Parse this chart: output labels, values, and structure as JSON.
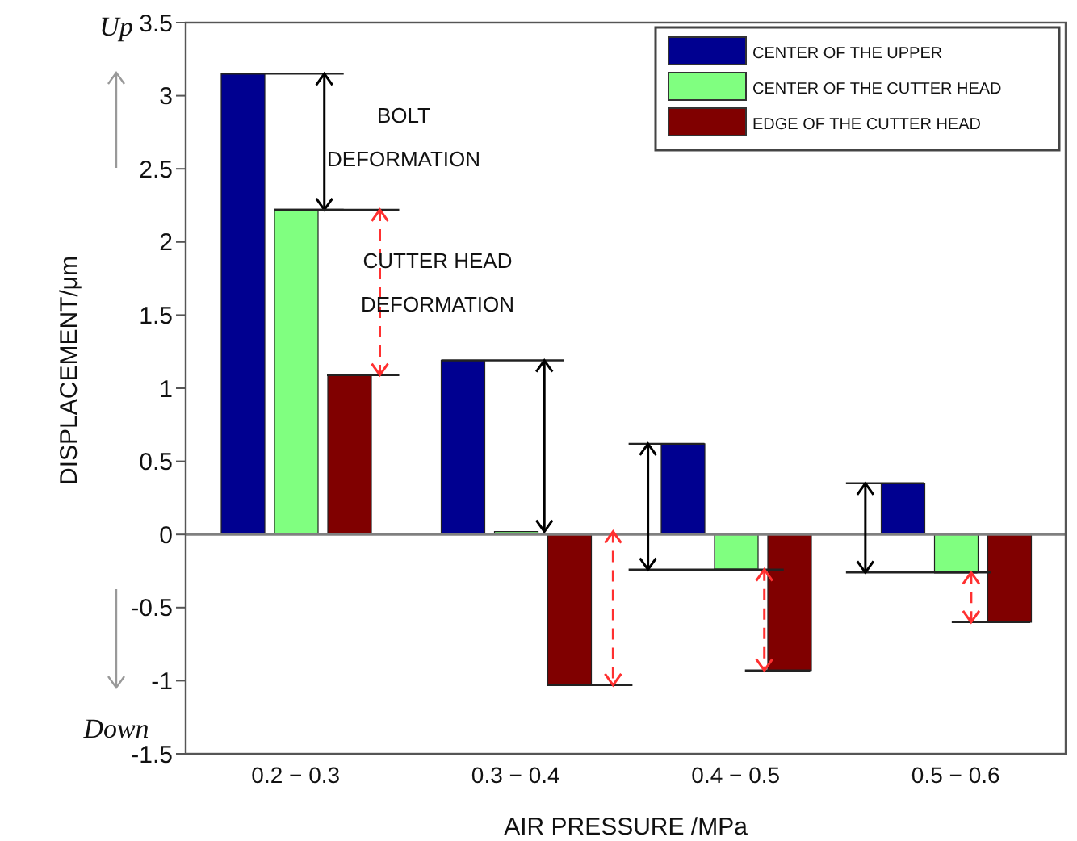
{
  "chart_data": {
    "type": "bar",
    "xlabel": "AIR PRESSURE /MPa",
    "ylabel": "DISPLACEMENT/μm",
    "categories": [
      "0.2 − 0.3",
      "0.3 − 0.4",
      "0.4 − 0.5",
      "0.5 − 0.6"
    ],
    "series": [
      {
        "name": "CENTER OF THE UPPER",
        "color": "#000090",
        "values": [
          3.15,
          1.19,
          0.62,
          0.35
        ]
      },
      {
        "name": "CENTER OF THE CUTTER HEAD",
        "color": "#80ff80",
        "values": [
          2.22,
          0.02,
          -0.24,
          -0.26
        ]
      },
      {
        "name": "EDGE OF THE CUTTER HEAD",
        "color": "#800000",
        "values": [
          1.09,
          -1.03,
          -0.93,
          -0.6
        ]
      }
    ],
    "ylim": [
      -1.5,
      3.5
    ],
    "yticks": [
      -1.5,
      -1,
      -0.5,
      0,
      0.5,
      1,
      1.5,
      2,
      2.5,
      3,
      3.5
    ],
    "ref_lines": [
      {
        "axis": "y",
        "value": 0,
        "color": "#808080"
      }
    ],
    "annotations": [
      "Up",
      "Down",
      "BOLT DEFORMATION",
      "CUTTER HEAD DEFORMATION"
    ],
    "legend": "top right",
    "grid": false
  }
}
